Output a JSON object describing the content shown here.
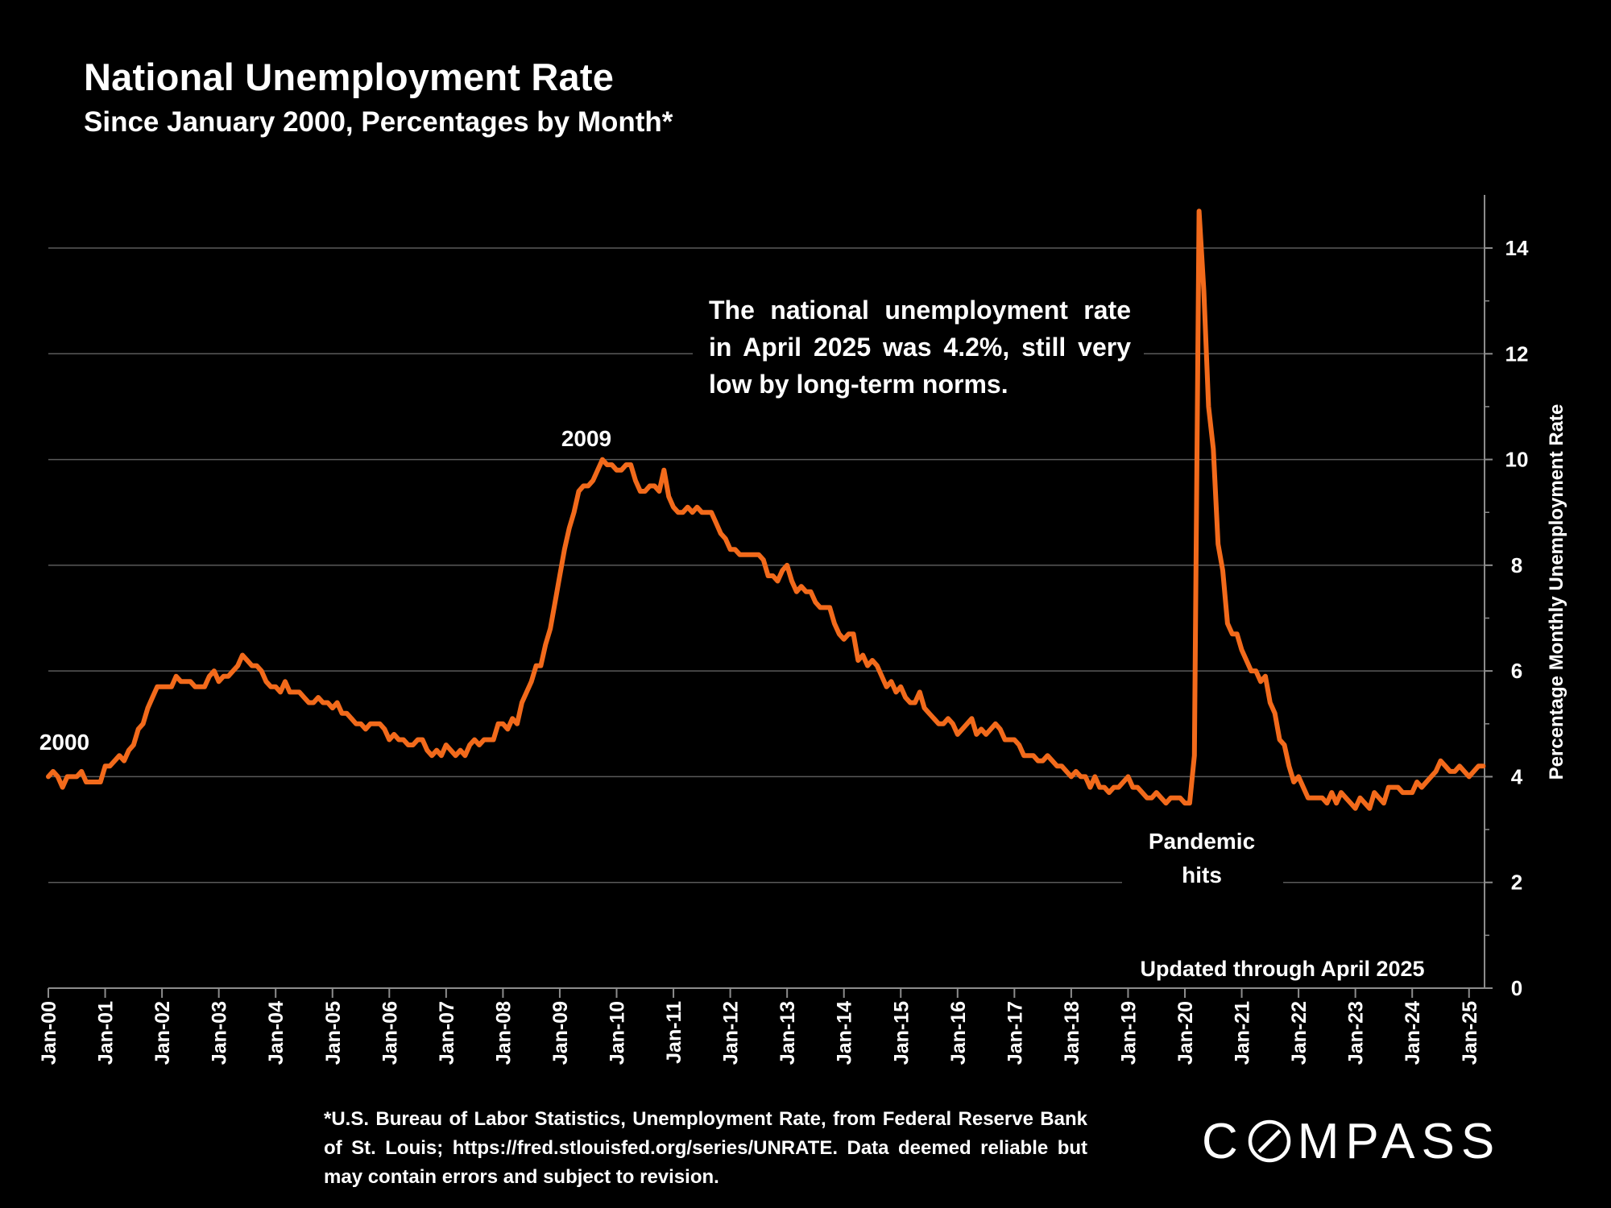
{
  "header": {
    "title": "National Unemployment Rate",
    "subtitle": "Since January 2000, Percentages by Month*"
  },
  "footnote": "*U.S. Bureau of Labor Statistics, Unemployment Rate, from Federal Reserve Bank of St. Louis; https://fred.stlouisfed.org/series/UNRATE. Data deemed reliable but may contain errors and subject to revision.",
  "logo": {
    "text_before": "C",
    "text_after": "MPASS",
    "icon": "compass-o-icon"
  },
  "colors": {
    "background": "#000000",
    "line": "#F26A1B",
    "grid": "#5a5a5a",
    "text": "#ffffff"
  },
  "chart_data": {
    "type": "line",
    "title": "National Unemployment Rate",
    "subtitle": "Since January 2000, Percentages by Month*",
    "ylabel": "Percentage Monthly Unemployment Rate",
    "xlabel": "",
    "y_axis_position": "right",
    "ylim": [
      0,
      15
    ],
    "yticks": [
      0,
      2,
      4,
      6,
      8,
      10,
      12,
      14
    ],
    "grid": true,
    "x_start": "2000-01",
    "x_end": "2025-04",
    "xtick_labels": [
      "Jan-00",
      "Jan-01",
      "Jan-02",
      "Jan-03",
      "Jan-04",
      "Jan-05",
      "Jan-06",
      "Jan-07",
      "Jan-08",
      "Jan-09",
      "Jan-10",
      "Jan-11",
      "Jan-12",
      "Jan-13",
      "Jan-14",
      "Jan-15",
      "Jan-16",
      "Jan-17",
      "Jan-18",
      "Jan-19",
      "Jan-20",
      "Jan-21",
      "Jan-22",
      "Jan-23",
      "Jan-24",
      "Jan-25"
    ],
    "series": [
      {
        "name": "Unemployment Rate",
        "values": [
          4.0,
          4.1,
          4.0,
          3.8,
          4.0,
          4.0,
          4.0,
          4.1,
          3.9,
          3.9,
          3.9,
          3.9,
          4.2,
          4.2,
          4.3,
          4.4,
          4.3,
          4.5,
          4.6,
          4.9,
          5.0,
          5.3,
          5.5,
          5.7,
          5.7,
          5.7,
          5.7,
          5.9,
          5.8,
          5.8,
          5.8,
          5.7,
          5.7,
          5.7,
          5.9,
          6.0,
          5.8,
          5.9,
          5.9,
          6.0,
          6.1,
          6.3,
          6.2,
          6.1,
          6.1,
          6.0,
          5.8,
          5.7,
          5.7,
          5.6,
          5.8,
          5.6,
          5.6,
          5.6,
          5.5,
          5.4,
          5.4,
          5.5,
          5.4,
          5.4,
          5.3,
          5.4,
          5.2,
          5.2,
          5.1,
          5.0,
          5.0,
          4.9,
          5.0,
          5.0,
          5.0,
          4.9,
          4.7,
          4.8,
          4.7,
          4.7,
          4.6,
          4.6,
          4.7,
          4.7,
          4.5,
          4.4,
          4.5,
          4.4,
          4.6,
          4.5,
          4.4,
          4.5,
          4.4,
          4.6,
          4.7,
          4.6,
          4.7,
          4.7,
          4.7,
          5.0,
          5.0,
          4.9,
          5.1,
          5.0,
          5.4,
          5.6,
          5.8,
          6.1,
          6.1,
          6.5,
          6.8,
          7.3,
          7.8,
          8.3,
          8.7,
          9.0,
          9.4,
          9.5,
          9.5,
          9.6,
          9.8,
          10.0,
          9.9,
          9.9,
          9.8,
          9.8,
          9.9,
          9.9,
          9.6,
          9.4,
          9.4,
          9.5,
          9.5,
          9.4,
          9.8,
          9.3,
          9.1,
          9.0,
          9.0,
          9.1,
          9.0,
          9.1,
          9.0,
          9.0,
          9.0,
          8.8,
          8.6,
          8.5,
          8.3,
          8.3,
          8.2,
          8.2,
          8.2,
          8.2,
          8.2,
          8.1,
          7.8,
          7.8,
          7.7,
          7.9,
          8.0,
          7.7,
          7.5,
          7.6,
          7.5,
          7.5,
          7.3,
          7.2,
          7.2,
          7.2,
          6.9,
          6.7,
          6.6,
          6.7,
          6.7,
          6.2,
          6.3,
          6.1,
          6.2,
          6.1,
          5.9,
          5.7,
          5.8,
          5.6,
          5.7,
          5.5,
          5.4,
          5.4,
          5.6,
          5.3,
          5.2,
          5.1,
          5.0,
          5.0,
          5.1,
          5.0,
          4.8,
          4.9,
          5.0,
          5.1,
          4.8,
          4.9,
          4.8,
          4.9,
          5.0,
          4.9,
          4.7,
          4.7,
          4.7,
          4.6,
          4.4,
          4.4,
          4.4,
          4.3,
          4.3,
          4.4,
          4.3,
          4.2,
          4.2,
          4.1,
          4.0,
          4.1,
          4.0,
          4.0,
          3.8,
          4.0,
          3.8,
          3.8,
          3.7,
          3.8,
          3.8,
          3.9,
          4.0,
          3.8,
          3.8,
          3.7,
          3.6,
          3.6,
          3.7,
          3.6,
          3.5,
          3.6,
          3.6,
          3.6,
          3.5,
          3.5,
          4.4,
          14.7,
          13.2,
          11.0,
          10.2,
          8.4,
          7.9,
          6.9,
          6.7,
          6.7,
          6.4,
          6.2,
          6.0,
          6.0,
          5.8,
          5.9,
          5.4,
          5.2,
          4.7,
          4.6,
          4.2,
          3.9,
          4.0,
          3.8,
          3.6,
          3.6,
          3.6,
          3.6,
          3.5,
          3.7,
          3.5,
          3.7,
          3.6,
          3.5,
          3.4,
          3.6,
          3.5,
          3.4,
          3.7,
          3.6,
          3.5,
          3.8,
          3.8,
          3.8,
          3.7,
          3.7,
          3.7,
          3.9,
          3.8,
          3.9,
          4.0,
          4.1,
          4.3,
          4.2,
          4.1,
          4.1,
          4.2,
          4.1,
          4.0,
          4.1,
          4.2,
          4.2
        ]
      }
    ],
    "annotations": [
      {
        "text": "2000",
        "x": "2000-01",
        "y": 4.0
      },
      {
        "text": "2009",
        "x": "2009-10",
        "y": 10.0
      },
      {
        "text": "The national unemployment rate in April 2025 was 4.2%, still very low by long-term norms."
      },
      {
        "text": "Pandemic hits",
        "x": "2020-04",
        "y": 14.7
      },
      {
        "text": "Updated through April 2025"
      }
    ]
  }
}
